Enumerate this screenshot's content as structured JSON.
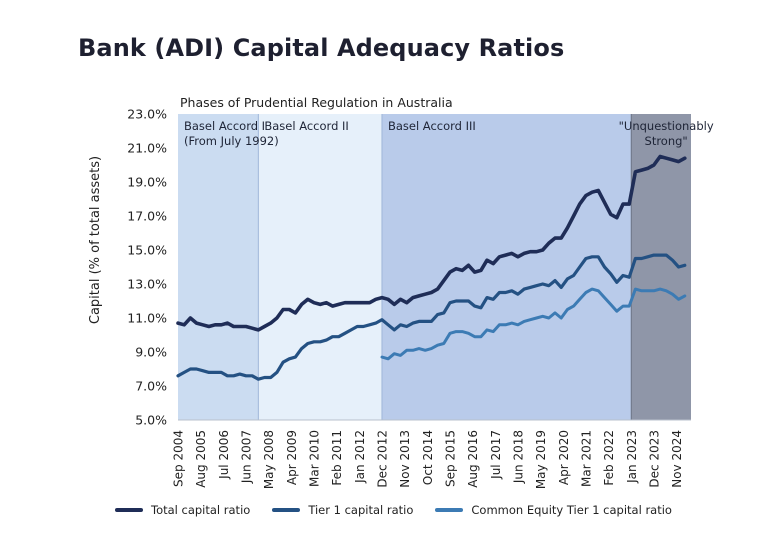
{
  "title": "Bank (ADI) Capital Adequacy Ratios",
  "colors": {
    "total": "#1f2d57",
    "tier1": "#245183",
    "cet1": "#3c7bb4",
    "band1": "#cbdcf1",
    "band2": "#e6f0fa",
    "band3": "#b9cbea",
    "band4": "#8f96a8"
  },
  "chart_data": {
    "type": "line",
    "title": "Bank (ADI) Capital Adequacy Ratios",
    "subtitle": "Phases of Prudential Regulation in Australia",
    "xlabel": "",
    "ylabel": "Capital (% of total assets)",
    "ylim": [
      5.0,
      23.0
    ],
    "yticks": [
      "5.0%",
      "7.0%",
      "9.0%",
      "11.0%",
      "13.0%",
      "15.0%",
      "17.0%",
      "19.0%",
      "21.0%",
      "23.0%"
    ],
    "xlim": [
      "Sep 2004",
      "Jun 2025"
    ],
    "x_tick_labels": [
      "Sep 2004",
      "Aug 2005",
      "Jul 2006",
      "Jun 2007",
      "May 2008",
      "Apr 2009",
      "Mar 2010",
      "Feb 2011",
      "Jan 2012",
      "Dec 2012",
      "Nov 2013",
      "Oct 2014",
      "Sep 2015",
      "Aug 2016",
      "Jul 2017",
      "Jun 2018",
      "May 2019",
      "Apr 2020",
      "Mar 2021",
      "Feb 2022",
      "Jan 2023",
      "Dec 2023",
      "Nov 2024"
    ],
    "grid": false,
    "legend_position": "bottom",
    "phases": [
      {
        "label": "Basel Accord I",
        "label2": "(From July 1992)",
        "start": "Sep 2004",
        "end": "Dec 2007",
        "color": "#cbdcf1"
      },
      {
        "label": "Basel Accord II",
        "start": "Dec 2007",
        "end": "Dec 2012",
        "color": "#e6f0fa"
      },
      {
        "label": "Basel Accord III",
        "start": "Dec 2012",
        "end": "Jan 2023",
        "color": "#b9cbea"
      },
      {
        "label": "\"Unquestionably",
        "label2": "Strong\"",
        "start": "Jan 2023",
        "end": "Jun 2025",
        "color": "#8f96a8"
      }
    ],
    "series": [
      {
        "name": "Total capital ratio",
        "color": "#1f2d57",
        "points": [
          [
            "Sep 2004",
            10.7
          ],
          [
            "Dec 2004",
            10.6
          ],
          [
            "Mar 2005",
            11.0
          ],
          [
            "Jun 2005",
            10.7
          ],
          [
            "Sep 2005",
            10.6
          ],
          [
            "Dec 2005",
            10.5
          ],
          [
            "Mar 2006",
            10.6
          ],
          [
            "Jun 2006",
            10.6
          ],
          [
            "Sep 2006",
            10.7
          ],
          [
            "Dec 2006",
            10.5
          ],
          [
            "Mar 2007",
            10.5
          ],
          [
            "Jun 2007",
            10.5
          ],
          [
            "Sep 2007",
            10.4
          ],
          [
            "Dec 2007",
            10.3
          ],
          [
            "Mar 2008",
            10.5
          ],
          [
            "Jun 2008",
            10.7
          ],
          [
            "Sep 2008",
            11.0
          ],
          [
            "Dec 2008",
            11.5
          ],
          [
            "Mar 2009",
            11.5
          ],
          [
            "Jun 2009",
            11.3
          ],
          [
            "Sep 2009",
            11.8
          ],
          [
            "Dec 2009",
            12.1
          ],
          [
            "Mar 2010",
            11.9
          ],
          [
            "Jun 2010",
            11.8
          ],
          [
            "Sep 2010",
            11.9
          ],
          [
            "Dec 2010",
            11.7
          ],
          [
            "Mar 2011",
            11.8
          ],
          [
            "Jun 2011",
            11.9
          ],
          [
            "Sep 2011",
            11.9
          ],
          [
            "Dec 2011",
            11.9
          ],
          [
            "Mar 2012",
            11.9
          ],
          [
            "Jun 2012",
            11.9
          ],
          [
            "Sep 2012",
            12.1
          ],
          [
            "Dec 2012",
            12.2
          ],
          [
            "Mar 2013",
            12.1
          ],
          [
            "Jun 2013",
            11.8
          ],
          [
            "Sep 2013",
            12.1
          ],
          [
            "Dec 2013",
            11.9
          ],
          [
            "Mar 2014",
            12.2
          ],
          [
            "Jun 2014",
            12.3
          ],
          [
            "Sep 2014",
            12.4
          ],
          [
            "Dec 2014",
            12.5
          ],
          [
            "Mar 2015",
            12.7
          ],
          [
            "Jun 2015",
            13.2
          ],
          [
            "Sep 2015",
            13.7
          ],
          [
            "Dec 2015",
            13.9
          ],
          [
            "Mar 2016",
            13.8
          ],
          [
            "Jun 2016",
            14.1
          ],
          [
            "Sep 2016",
            13.7
          ],
          [
            "Dec 2016",
            13.8
          ],
          [
            "Mar 2017",
            14.4
          ],
          [
            "Jun 2017",
            14.2
          ],
          [
            "Sep 2017",
            14.6
          ],
          [
            "Dec 2017",
            14.7
          ],
          [
            "Mar 2018",
            14.8
          ],
          [
            "Jun 2018",
            14.6
          ],
          [
            "Sep 2018",
            14.8
          ],
          [
            "Dec 2018",
            14.9
          ],
          [
            "Mar 2019",
            14.9
          ],
          [
            "Jun 2019",
            15.0
          ],
          [
            "Sep 2019",
            15.4
          ],
          [
            "Dec 2019",
            15.7
          ],
          [
            "Mar 2020",
            15.7
          ],
          [
            "Jun 2020",
            16.3
          ],
          [
            "Sep 2020",
            17.0
          ],
          [
            "Dec 2020",
            17.7
          ],
          [
            "Mar 2021",
            18.2
          ],
          [
            "Jun 2021",
            18.4
          ],
          [
            "Sep 2021",
            18.5
          ],
          [
            "Dec 2021",
            17.8
          ],
          [
            "Mar 2022",
            17.1
          ],
          [
            "Jun 2022",
            16.9
          ],
          [
            "Sep 2022",
            17.7
          ],
          [
            "Dec 2022",
            17.7
          ],
          [
            "Mar 2023",
            19.6
          ],
          [
            "Jun 2023",
            19.7
          ],
          [
            "Sep 2023",
            19.8
          ],
          [
            "Dec 2023",
            20.0
          ],
          [
            "Mar 2024",
            20.5
          ],
          [
            "Jun 2024",
            20.4
          ],
          [
            "Sep 2024",
            20.3
          ],
          [
            "Dec 2024",
            20.2
          ],
          [
            "Mar 2025",
            20.4
          ]
        ]
      },
      {
        "name": "Tier 1 capital ratio",
        "color": "#245183",
        "points": [
          [
            "Sep 2004",
            7.6
          ],
          [
            "Dec 2004",
            7.8
          ],
          [
            "Mar 2005",
            8.0
          ],
          [
            "Jun 2005",
            8.0
          ],
          [
            "Sep 2005",
            7.9
          ],
          [
            "Dec 2005",
            7.8
          ],
          [
            "Mar 2006",
            7.8
          ],
          [
            "Jun 2006",
            7.8
          ],
          [
            "Sep 2006",
            7.6
          ],
          [
            "Dec 2006",
            7.6
          ],
          [
            "Mar 2007",
            7.7
          ],
          [
            "Jun 2007",
            7.6
          ],
          [
            "Sep 2007",
            7.6
          ],
          [
            "Dec 2007",
            7.4
          ],
          [
            "Mar 2008",
            7.5
          ],
          [
            "Jun 2008",
            7.5
          ],
          [
            "Sep 2008",
            7.8
          ],
          [
            "Dec 2008",
            8.4
          ],
          [
            "Mar 2009",
            8.6
          ],
          [
            "Jun 2009",
            8.7
          ],
          [
            "Sep 2009",
            9.2
          ],
          [
            "Dec 2009",
            9.5
          ],
          [
            "Mar 2010",
            9.6
          ],
          [
            "Jun 2010",
            9.6
          ],
          [
            "Sep 2010",
            9.7
          ],
          [
            "Dec 2010",
            9.9
          ],
          [
            "Mar 2011",
            9.9
          ],
          [
            "Jun 2011",
            10.1
          ],
          [
            "Sep 2011",
            10.3
          ],
          [
            "Dec 2011",
            10.5
          ],
          [
            "Mar 2012",
            10.5
          ],
          [
            "Jun 2012",
            10.6
          ],
          [
            "Sep 2012",
            10.7
          ],
          [
            "Dec 2012",
            10.9
          ],
          [
            "Mar 2013",
            10.6
          ],
          [
            "Jun 2013",
            10.3
          ],
          [
            "Sep 2013",
            10.6
          ],
          [
            "Dec 2013",
            10.5
          ],
          [
            "Mar 2014",
            10.7
          ],
          [
            "Jun 2014",
            10.8
          ],
          [
            "Sep 2014",
            10.8
          ],
          [
            "Dec 2014",
            10.8
          ],
          [
            "Mar 2015",
            11.2
          ],
          [
            "Jun 2015",
            11.3
          ],
          [
            "Sep 2015",
            11.9
          ],
          [
            "Dec 2015",
            12.0
          ],
          [
            "Mar 2016",
            12.0
          ],
          [
            "Jun 2016",
            12.0
          ],
          [
            "Sep 2016",
            11.7
          ],
          [
            "Dec 2016",
            11.6
          ],
          [
            "Mar 2017",
            12.2
          ],
          [
            "Jun 2017",
            12.1
          ],
          [
            "Sep 2017",
            12.5
          ],
          [
            "Dec 2017",
            12.5
          ],
          [
            "Mar 2018",
            12.6
          ],
          [
            "Jun 2018",
            12.4
          ],
          [
            "Sep 2018",
            12.7
          ],
          [
            "Dec 2018",
            12.8
          ],
          [
            "Mar 2019",
            12.9
          ],
          [
            "Jun 2019",
            13.0
          ],
          [
            "Sep 2019",
            12.9
          ],
          [
            "Dec 2019",
            13.2
          ],
          [
            "Mar 2020",
            12.8
          ],
          [
            "Jun 2020",
            13.3
          ],
          [
            "Sep 2020",
            13.5
          ],
          [
            "Dec 2020",
            14.0
          ],
          [
            "Mar 2021",
            14.5
          ],
          [
            "Jun 2021",
            14.6
          ],
          [
            "Sep 2021",
            14.6
          ],
          [
            "Dec 2021",
            14.0
          ],
          [
            "Mar 2022",
            13.6
          ],
          [
            "Jun 2022",
            13.1
          ],
          [
            "Sep 2022",
            13.5
          ],
          [
            "Dec 2022",
            13.4
          ],
          [
            "Mar 2023",
            14.5
          ],
          [
            "Jun 2023",
            14.5
          ],
          [
            "Sep 2023",
            14.6
          ],
          [
            "Dec 2023",
            14.7
          ],
          [
            "Mar 2024",
            14.7
          ],
          [
            "Jun 2024",
            14.7
          ],
          [
            "Sep 2024",
            14.4
          ],
          [
            "Dec 2024",
            14.0
          ],
          [
            "Mar 2025",
            14.1
          ]
        ]
      },
      {
        "name": "Common Equity Tier 1 capital ratio",
        "color": "#3c7bb4",
        "points": [
          [
            "Dec 2012",
            8.7
          ],
          [
            "Mar 2013",
            8.6
          ],
          [
            "Jun 2013",
            8.9
          ],
          [
            "Sep 2013",
            8.8
          ],
          [
            "Dec 2013",
            9.1
          ],
          [
            "Mar 2014",
            9.1
          ],
          [
            "Jun 2014",
            9.2
          ],
          [
            "Sep 2014",
            9.1
          ],
          [
            "Dec 2014",
            9.2
          ],
          [
            "Mar 2015",
            9.4
          ],
          [
            "Jun 2015",
            9.5
          ],
          [
            "Sep 2015",
            10.1
          ],
          [
            "Dec 2015",
            10.2
          ],
          [
            "Mar 2016",
            10.2
          ],
          [
            "Jun 2016",
            10.1
          ],
          [
            "Sep 2016",
            9.9
          ],
          [
            "Dec 2016",
            9.9
          ],
          [
            "Mar 2017",
            10.3
          ],
          [
            "Jun 2017",
            10.2
          ],
          [
            "Sep 2017",
            10.6
          ],
          [
            "Dec 2017",
            10.6
          ],
          [
            "Mar 2018",
            10.7
          ],
          [
            "Jun 2018",
            10.6
          ],
          [
            "Sep 2018",
            10.8
          ],
          [
            "Dec 2018",
            10.9
          ],
          [
            "Mar 2019",
            11.0
          ],
          [
            "Jun 2019",
            11.1
          ],
          [
            "Sep 2019",
            11.0
          ],
          [
            "Dec 2019",
            11.3
          ],
          [
            "Mar 2020",
            11.0
          ],
          [
            "Jun 2020",
            11.5
          ],
          [
            "Sep 2020",
            11.7
          ],
          [
            "Dec 2020",
            12.1
          ],
          [
            "Mar 2021",
            12.5
          ],
          [
            "Jun 2021",
            12.7
          ],
          [
            "Sep 2021",
            12.6
          ],
          [
            "Dec 2021",
            12.2
          ],
          [
            "Mar 2022",
            11.8
          ],
          [
            "Jun 2022",
            11.4
          ],
          [
            "Sep 2022",
            11.7
          ],
          [
            "Dec 2022",
            11.7
          ],
          [
            "Mar 2023",
            12.7
          ],
          [
            "Jun 2023",
            12.6
          ],
          [
            "Sep 2023",
            12.6
          ],
          [
            "Dec 2023",
            12.6
          ],
          [
            "Mar 2024",
            12.7
          ],
          [
            "Jun 2024",
            12.6
          ],
          [
            "Sep 2024",
            12.4
          ],
          [
            "Dec 2024",
            12.1
          ],
          [
            "Mar 2025",
            12.3
          ]
        ]
      }
    ]
  }
}
